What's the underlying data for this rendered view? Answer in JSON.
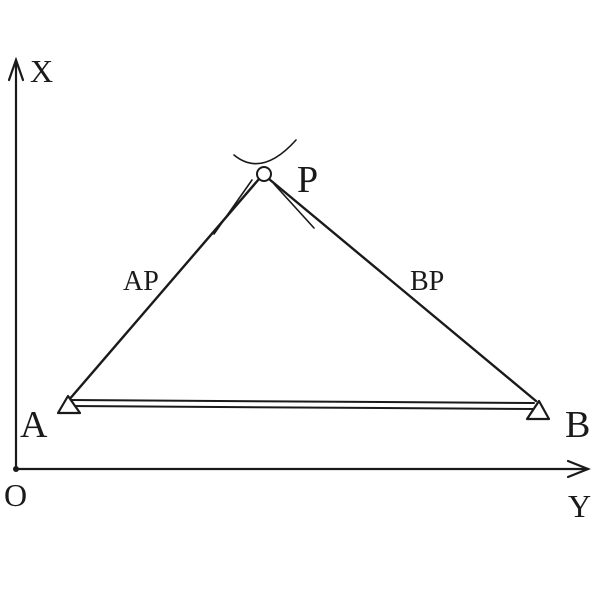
{
  "axes": {
    "x_axis_label": "X",
    "y_axis_label": "Y",
    "origin_label": "O"
  },
  "points": {
    "a_label": "A",
    "b_label": "B",
    "p_label": "P"
  },
  "lines": {
    "ap_label": "AP",
    "bp_label": "BP"
  },
  "colors": {
    "ink": "#1a1a1a",
    "background": "#ffffff"
  }
}
